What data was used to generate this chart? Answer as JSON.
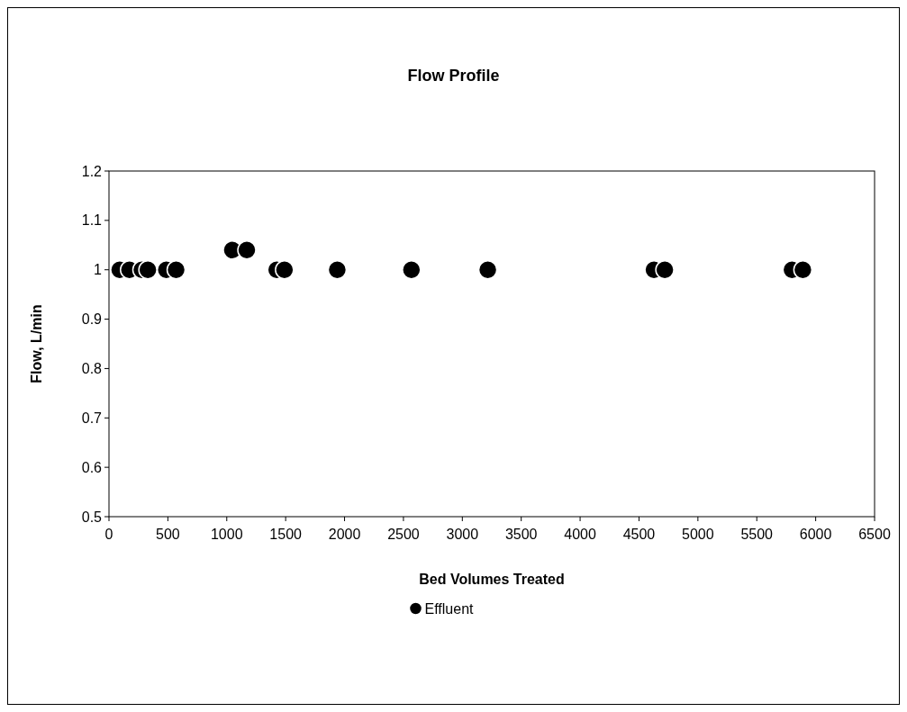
{
  "chart_data": {
    "type": "scatter",
    "title": "Flow Profile",
    "xlabel": "Bed Volumes Treated",
    "ylabel": "Flow, L/min",
    "x": [
      91,
      174,
      279,
      330,
      487,
      570,
      1047,
      1170,
      1424,
      1490,
      1938,
      2568,
      3216,
      4627,
      4719,
      5799,
      5891
    ],
    "series": [
      {
        "name": "Effluent",
        "color": "#000000",
        "values": [
          1,
          1,
          1,
          1,
          1,
          1,
          1.04,
          1.04,
          1,
          1,
          1,
          1,
          1,
          1,
          1,
          1,
          1
        ]
      }
    ],
    "xlim": [
      0,
      6500
    ],
    "xticks": [
      0,
      500,
      1000,
      1500,
      2000,
      2500,
      3000,
      3500,
      4000,
      4500,
      5000,
      5500,
      6000,
      6500
    ],
    "ylim": [
      0.5,
      1.2
    ],
    "yticks": [
      0.5,
      0.6,
      0.7,
      0.8,
      0.9,
      1,
      1.1,
      1.2
    ],
    "grid": false,
    "legend": "bottom",
    "marker": "circle"
  }
}
